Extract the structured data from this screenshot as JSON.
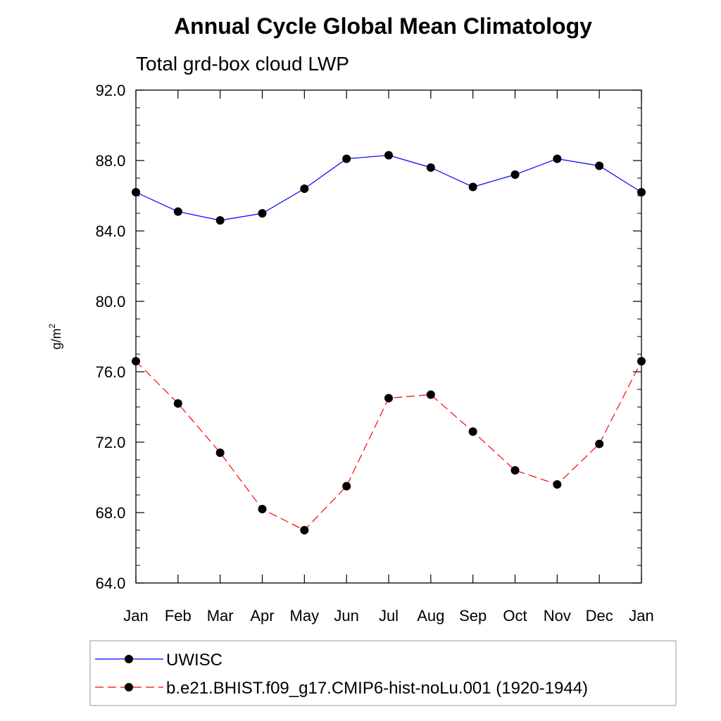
{
  "chart_data": {
    "type": "line",
    "title": "Annual Cycle Global Mean Climatology",
    "subtitle": "Total grd-box cloud LWP",
    "ylabel_base": "g/m",
    "ylabel_sup": "2",
    "xlabel": "",
    "categories": [
      "Jan",
      "Feb",
      "Mar",
      "Apr",
      "May",
      "Jun",
      "Jul",
      "Aug",
      "Sep",
      "Oct",
      "Nov",
      "Dec",
      "Jan"
    ],
    "ylim": [
      64.0,
      92.0
    ],
    "yticks": [
      "64.0",
      "68.0",
      "72.0",
      "76.0",
      "80.0",
      "84.0",
      "88.0",
      "92.0"
    ],
    "grid": false,
    "legend_position": "bottom",
    "series": [
      {
        "name": "UWISC",
        "color": "#0000ff",
        "dashed": false,
        "values": [
          86.2,
          85.1,
          84.6,
          85.0,
          86.4,
          88.1,
          88.3,
          87.6,
          86.5,
          87.2,
          88.1,
          87.7,
          86.2
        ]
      },
      {
        "name": "b.e21.BHIST.f09_g17.CMIP6-hist-noLu.001 (1920-1944)",
        "color": "#ff0000",
        "dashed": true,
        "values": [
          76.6,
          74.2,
          71.4,
          68.2,
          67.0,
          69.5,
          74.5,
          74.7,
          72.6,
          70.4,
          69.6,
          71.9,
          76.6
        ]
      }
    ]
  }
}
